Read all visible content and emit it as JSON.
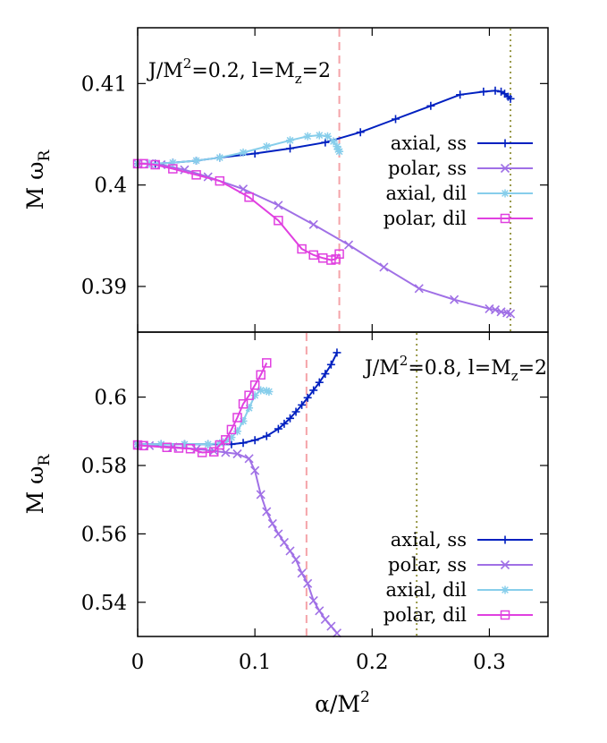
{
  "chart_data": [
    {
      "type": "line",
      "annotation": "J/M²=0.2, l=M_z=2",
      "annotation_parts": {
        "j": "J/M",
        "sup": "2",
        "mid": "=0.2, l=M",
        "sub": "z",
        "end": "=2"
      },
      "ylabel": "M ω_R",
      "ylabel_parts": {
        "main": "M ω",
        "sub": "R"
      },
      "xlim": [
        0,
        0.35
      ],
      "ylim": [
        0.3855,
        0.4155
      ],
      "yticks": [
        0.39,
        0.4,
        0.41
      ],
      "ytick_labels": [
        "0.39",
        "0.4",
        "0.41"
      ],
      "grid": false,
      "legend_position": "right",
      "vlines": [
        {
          "x": 0.172,
          "color": "#f4a3a8",
          "style": "dashed"
        },
        {
          "x": 0.318,
          "color": "#9a9a4a",
          "style": "dotted"
        }
      ],
      "series": [
        {
          "name": "axial, ss",
          "color": "#0020c0",
          "marker": "plus",
          "x": [
            0,
            0.015,
            0.03,
            0.05,
            0.07,
            0.1,
            0.13,
            0.16,
            0.19,
            0.22,
            0.25,
            0.275,
            0.295,
            0.305,
            0.31,
            0.313,
            0.316,
            0.318
          ],
          "y": [
            0.4021,
            0.4021,
            0.4022,
            0.4024,
            0.4027,
            0.4031,
            0.4036,
            0.4042,
            0.4052,
            0.4065,
            0.4078,
            0.4089,
            0.4092,
            0.4093,
            0.4092,
            0.409,
            0.4087,
            0.4085
          ]
        },
        {
          "name": "polar, ss",
          "color": "#a070e6",
          "marker": "x",
          "x": [
            0,
            0.01,
            0.02,
            0.04,
            0.06,
            0.09,
            0.12,
            0.15,
            0.18,
            0.21,
            0.24,
            0.27,
            0.3,
            0.305,
            0.31,
            0.315,
            0.318
          ],
          "y": [
            0.4021,
            0.4021,
            0.402,
            0.4015,
            0.4008,
            0.3996,
            0.398,
            0.3961,
            0.3941,
            0.3919,
            0.3898,
            0.3887,
            0.3878,
            0.3877,
            0.3875,
            0.3874,
            0.3873
          ]
        },
        {
          "name": "axial, dil",
          "color": "#87ceeb",
          "marker": "star",
          "x": [
            0,
            0.01,
            0.03,
            0.05,
            0.07,
            0.09,
            0.11,
            0.13,
            0.145,
            0.155,
            0.162,
            0.167,
            0.17,
            0.171,
            0.172
          ],
          "y": [
            0.4021,
            0.4021,
            0.4022,
            0.4024,
            0.4027,
            0.4032,
            0.4038,
            0.4044,
            0.4048,
            0.4049,
            0.4048,
            0.4043,
            0.4038,
            0.4035,
            0.4033
          ]
        },
        {
          "name": "polar, dil",
          "color": "#e040e0",
          "marker": "square",
          "x": [
            0,
            0.005,
            0.015,
            0.03,
            0.05,
            0.07,
            0.095,
            0.12,
            0.14,
            0.15,
            0.158,
            0.165,
            0.169,
            0.172
          ],
          "y": [
            0.4021,
            0.4021,
            0.402,
            0.4016,
            0.401,
            0.4004,
            0.3988,
            0.3965,
            0.3937,
            0.3931,
            0.3928,
            0.3926,
            0.3927,
            0.3932
          ]
        }
      ]
    },
    {
      "type": "line",
      "annotation": "J/M²=0.8, l=M_z=2",
      "annotation_parts": {
        "j": "J/M",
        "sup": "2",
        "mid": "=0.8, l=M",
        "sub": "z",
        "end": "=2"
      },
      "ylabel": "M ω_R",
      "ylabel_parts": {
        "main": "M ω",
        "sub": "R"
      },
      "xlabel": "α/M²",
      "xlabel_parts": {
        "main": "α/M",
        "sup": "2"
      },
      "xlim": [
        0,
        0.35
      ],
      "ylim": [
        0.53,
        0.619
      ],
      "xticks": [
        0,
        0.1,
        0.2,
        0.3
      ],
      "xtick_labels": [
        "0",
        "0.1",
        "0.2",
        "0.3"
      ],
      "yticks": [
        0.54,
        0.56,
        0.58,
        0.6
      ],
      "ytick_labels": [
        "0.54",
        "0.56",
        "0.58",
        "0.6"
      ],
      "grid": false,
      "legend_position": "bottom-right",
      "vlines": [
        {
          "x": 0.144,
          "color": "#f4a3a8",
          "style": "dashed"
        },
        {
          "x": 0.238,
          "color": "#9a9a4a",
          "style": "dotted"
        }
      ],
      "series": [
        {
          "name": "axial, ss",
          "color": "#0020c0",
          "marker": "plus",
          "x": [
            0,
            0.02,
            0.04,
            0.06,
            0.08,
            0.09,
            0.1,
            0.11,
            0.12,
            0.125,
            0.13,
            0.135,
            0.14,
            0.145,
            0.15,
            0.155,
            0.16,
            0.165,
            0.17
          ],
          "y": [
            0.5862,
            0.5862,
            0.5862,
            0.5862,
            0.5862,
            0.5866,
            0.5874,
            0.5886,
            0.5907,
            0.5922,
            0.5938,
            0.5957,
            0.5977,
            0.5998,
            0.602,
            0.6043,
            0.6068,
            0.6095,
            0.613
          ]
        },
        {
          "name": "polar, ss",
          "color": "#a070e6",
          "marker": "x",
          "x": [
            0,
            0.01,
            0.03,
            0.05,
            0.065,
            0.075,
            0.085,
            0.095,
            0.1,
            0.105,
            0.11,
            0.115,
            0.12,
            0.125,
            0.13,
            0.135,
            0.14,
            0.145,
            0.15,
            0.155,
            0.16,
            0.165,
            0.17
          ],
          "y": [
            0.586,
            0.5858,
            0.5854,
            0.5848,
            0.5843,
            0.5838,
            0.5834,
            0.582,
            0.5785,
            0.5715,
            0.5665,
            0.563,
            0.56,
            0.5575,
            0.555,
            0.5525,
            0.5485,
            0.5455,
            0.5405,
            0.5375,
            0.535,
            0.533,
            0.531
          ]
        },
        {
          "name": "axial, dil",
          "color": "#87ceeb",
          "marker": "star",
          "x": [
            0,
            0.02,
            0.04,
            0.06,
            0.07,
            0.075,
            0.08,
            0.085,
            0.09,
            0.095,
            0.1,
            0.105,
            0.11,
            0.112
          ],
          "y": [
            0.5862,
            0.5862,
            0.5862,
            0.5862,
            0.5865,
            0.587,
            0.5882,
            0.59,
            0.593,
            0.5968,
            0.6005,
            0.602,
            0.6018,
            0.6016
          ]
        },
        {
          "name": "polar, dil",
          "color": "#e040e0",
          "marker": "square",
          "x": [
            0,
            0.005,
            0.025,
            0.035,
            0.045,
            0.055,
            0.065,
            0.07,
            0.075,
            0.08,
            0.085,
            0.09,
            0.095,
            0.1,
            0.105,
            0.11
          ],
          "y": [
            0.586,
            0.5858,
            0.5853,
            0.5851,
            0.5849,
            0.5838,
            0.584,
            0.586,
            0.5875,
            0.5905,
            0.594,
            0.598,
            0.6005,
            0.6035,
            0.6065,
            0.61
          ]
        }
      ]
    }
  ]
}
